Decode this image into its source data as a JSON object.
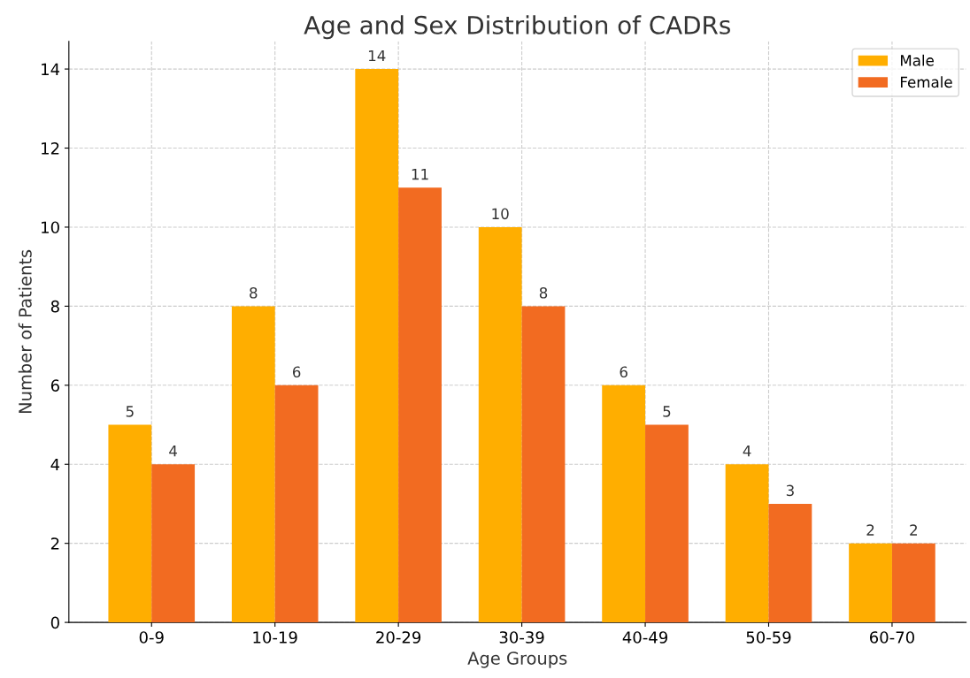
{
  "chart_data": {
    "type": "bar",
    "title": "Age and Sex Distribution of CADRs",
    "xlabel": "Age Groups",
    "ylabel": "Number of Patients",
    "categories": [
      "0-9",
      "10-19",
      "20-29",
      "30-39",
      "40-49",
      "50-59",
      "60-70"
    ],
    "series": [
      {
        "name": "Male",
        "color": "#ffae00",
        "values": [
          5,
          8,
          14,
          10,
          6,
          4,
          2
        ]
      },
      {
        "name": "Female",
        "color": "#f26b21",
        "values": [
          4,
          6,
          11,
          8,
          5,
          3,
          2
        ]
      }
    ],
    "ylim": [
      0,
      14.7
    ],
    "yticks": [
      0,
      2,
      4,
      6,
      8,
      10,
      12,
      14
    ],
    "grid": true,
    "legend": "top right",
    "data_labels": true
  }
}
